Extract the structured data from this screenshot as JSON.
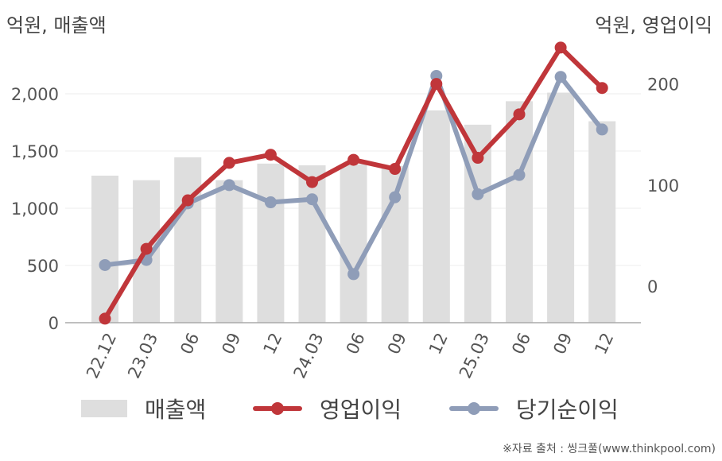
{
  "units": {
    "left": "억원, 매출액",
    "right": "억원, 영업이익"
  },
  "colors": {
    "bar": "#dedede",
    "operating_profit": "#c0363a",
    "net_income": "#8f9db8",
    "axis": "#aaaaaa",
    "grid": "#eeeeee"
  },
  "chart_data": {
    "type": "bar",
    "categories": [
      "22.12",
      "23.03",
      "06",
      "09",
      "12",
      "24.03",
      "06",
      "09",
      "12",
      "25.03",
      "06",
      "09",
      "12"
    ],
    "left_axis": {
      "ylim": [
        0,
        2000
      ],
      "ticks": [
        0,
        500,
        1000,
        1500,
        2000
      ],
      "tick_labels": [
        "0",
        "500",
        "1,000",
        "1,500",
        "2,000"
      ]
    },
    "right_axis": {
      "ylim": [
        -36,
        250
      ],
      "ticks": [
        0,
        100,
        200
      ],
      "tick_labels": [
        "0",
        "100",
        "200"
      ]
    },
    "series": [
      {
        "name": "매출액",
        "type": "bar",
        "axis": "left",
        "values": [
          1285,
          1245,
          1445,
          1245,
          1390,
          1375,
          1385,
          1370,
          1855,
          1730,
          1935,
          2010,
          1760
        ]
      },
      {
        "name": "영업이익",
        "type": "line",
        "axis": "right",
        "values": [
          -32,
          37,
          85,
          122,
          130,
          103,
          125,
          116,
          200,
          127,
          170,
          236,
          196
        ]
      },
      {
        "name": "당기순이익",
        "type": "line",
        "axis": "right",
        "values": [
          21,
          26,
          82,
          100,
          83,
          86,
          12,
          88,
          208,
          91,
          110,
          207,
          155
        ]
      }
    ],
    "legend_position": "bottom"
  },
  "source": "※자료 출처 : 씽크풀(www.thinkpool.com)"
}
